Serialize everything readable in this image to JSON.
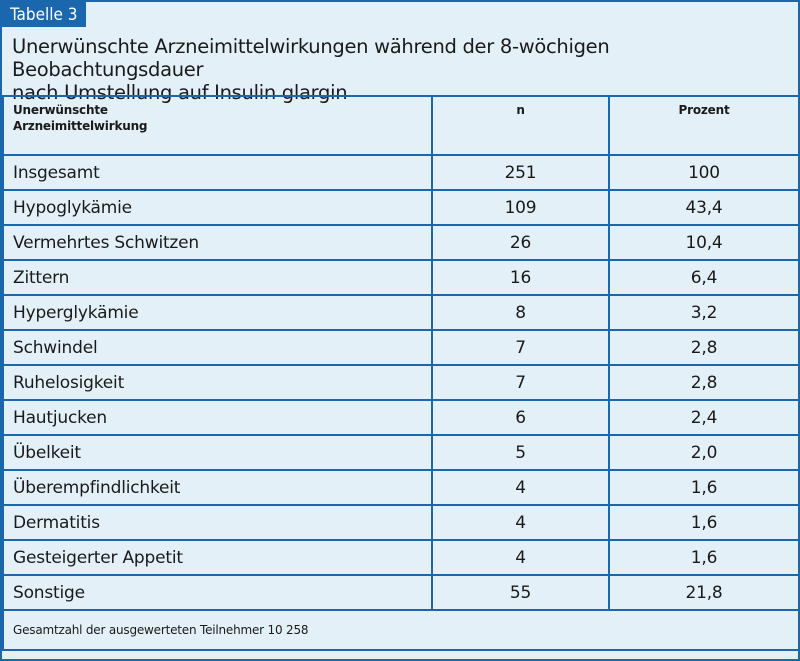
{
  "tag": "Tabelle 3",
  "title_line1": "Unerwünschte Arzneimittelwirkungen während der 8-wöchigen Beobachtungsdauer",
  "title_line2": "nach Umstellung auf Insulin glargin",
  "columns": {
    "label_line1": "Unerwünschte",
    "label_line2": "Arzneimittelwirkung",
    "n": "n",
    "percent": "Prozent"
  },
  "rows": [
    {
      "label": "Insgesamt",
      "n": "251",
      "percent": "100"
    },
    {
      "label": "Hypoglykämie",
      "n": "109",
      "percent": "43,4"
    },
    {
      "label": "Vermehrtes Schwitzen",
      "n": "26",
      "percent": "10,4"
    },
    {
      "label": "Zittern",
      "n": "16",
      "percent": "6,4"
    },
    {
      "label": "Hyperglykämie",
      "n": "8",
      "percent": "3,2"
    },
    {
      "label": "Schwindel",
      "n": "7",
      "percent": "2,8"
    },
    {
      "label": "Ruhelosigkeit",
      "n": "7",
      "percent": "2,8"
    },
    {
      "label": "Hautjucken",
      "n": "6",
      "percent": "2,4"
    },
    {
      "label": "Übelkeit",
      "n": "5",
      "percent": "2,0"
    },
    {
      "label": "Überempfindlichkeit",
      "n": "4",
      "percent": "1,6"
    },
    {
      "label": "Dermatitis",
      "n": "4",
      "percent": "1,6"
    },
    {
      "label": "Gesteigerter Appetit",
      "n": "4",
      "percent": "1,6"
    },
    {
      "label": "Sonstige",
      "n": "55",
      "percent": "21,8"
    }
  ],
  "footer": "Gesamtzahl der ausgewerteten Teilnehmer 10 258",
  "colors": {
    "accent": "#1b67ad",
    "background": "#e4f0f8"
  }
}
